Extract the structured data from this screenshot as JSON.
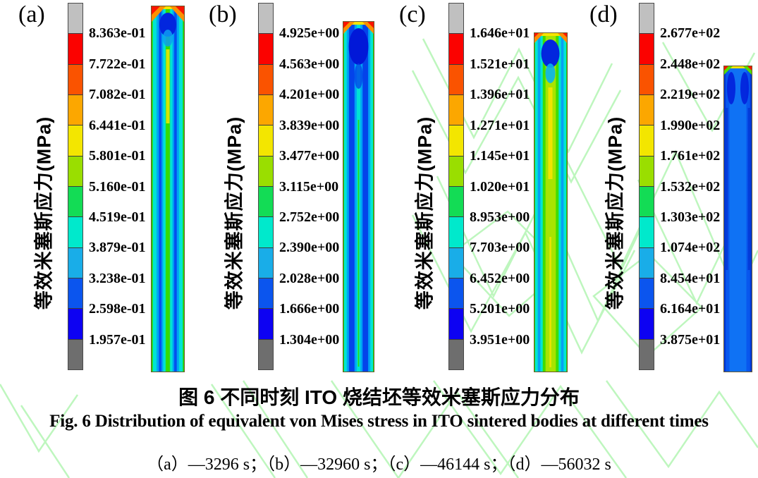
{
  "figure": {
    "caption_cn": "图 6 不同时刻 ITO 烧结坯等效米塞斯应力分布",
    "caption_en": "Fig. 6 Distribution of equivalent von Mises stress in ITO sintered bodies at different times",
    "caption_sub": "（a）—3296 s；（b）—32960 s；（c）—46144 s；（d）—56032 s",
    "colorbar_colors": [
      "#c0c0c0",
      "#fb0200",
      "#fa5300",
      "#fca700",
      "#f3e600",
      "#9ade00",
      "#13dc55",
      "#00e9cc",
      "#19ade8",
      "#0b55ee",
      "#0d02f2",
      "#6e6e6e"
    ],
    "watermark_color": "#aef4ae",
    "panels": [
      {
        "id": "a",
        "label": "(a)",
        "time": "3296 s",
        "axis_label": "等效米塞斯应力(MPa)",
        "tick_labels": [
          "8.363e-01",
          "7.722e-01",
          "7.082e-01",
          "6.441e-01",
          "5.801e-01",
          "5.160e-01",
          "4.519e-01",
          "3.879e-01",
          "3.238e-01",
          "2.598e-01",
          "1.957e-01"
        ]
      },
      {
        "id": "b",
        "label": "(b)",
        "time": "32960 s",
        "axis_label": "等效米塞斯应力(MPa)",
        "tick_labels": [
          "4.925e+00",
          "4.563e+00",
          "4.201e+00",
          "3.839e+00",
          "3.477e+00",
          "3.115e+00",
          "2.752e+00",
          "2.390e+00",
          "2.028e+00",
          "1.666e+00",
          "1.304e+00"
        ]
      },
      {
        "id": "c",
        "label": "(c)",
        "time": "46144 s",
        "axis_label": "等效米塞斯应力(MPa)",
        "tick_labels": [
          "1.646e+01",
          "1.521e+01",
          "1.396e+01",
          "1.271e+01",
          "1.145e+01",
          "1.020e+01",
          "8.953e+00",
          "7.703e+00",
          "6.452e+00",
          "5.201e+00",
          "3.951e+00"
        ]
      },
      {
        "id": "d",
        "label": "(d)",
        "time": "56032 s",
        "axis_label": "等效米塞斯应力(MPa)",
        "tick_labels": [
          "2.677e+02",
          "2.448e+02",
          "2.219e+02",
          "1.990e+02",
          "1.761e+02",
          "1.532e+02",
          "1.303e+02",
          "1.074e+02",
          "8.454e+01",
          "6.164e+01",
          "3.875e+01"
        ]
      }
    ]
  },
  "chart_data": [
    {
      "type": "heatmap",
      "panel": "a",
      "title": "等效米塞斯应力(MPa)",
      "time_s": 3296,
      "units": "MPa",
      "colorbar_ticks": [
        0.8363,
        0.7722,
        0.7082,
        0.6441,
        0.5801,
        0.516,
        0.4519,
        0.3879,
        0.3238,
        0.2598,
        0.1957
      ],
      "min": 0.1957,
      "max": 0.8363,
      "legend_position": "left of contour strip",
      "grid": false
    },
    {
      "type": "heatmap",
      "panel": "b",
      "title": "等效米塞斯应力(MPa)",
      "time_s": 32960,
      "units": "MPa",
      "colorbar_ticks": [
        4.925,
        4.563,
        4.201,
        3.839,
        3.477,
        3.115,
        2.752,
        2.39,
        2.028,
        1.666,
        1.304
      ],
      "min": 1.304,
      "max": 4.925,
      "legend_position": "left of contour strip",
      "grid": false
    },
    {
      "type": "heatmap",
      "panel": "c",
      "title": "等效米塞斯应力(MPa)",
      "time_s": 46144,
      "units": "MPa",
      "colorbar_ticks": [
        16.46,
        15.21,
        13.96,
        12.71,
        11.45,
        10.2,
        8.953,
        7.703,
        6.452,
        5.201,
        3.951
      ],
      "min": 3.951,
      "max": 16.46,
      "legend_position": "left of contour strip",
      "grid": false
    },
    {
      "type": "heatmap",
      "panel": "d",
      "title": "等效米塞斯应力(MPa)",
      "time_s": 56032,
      "units": "MPa",
      "colorbar_ticks": [
        267.7,
        244.8,
        221.9,
        199.0,
        176.1,
        153.2,
        130.3,
        107.4,
        84.54,
        61.64,
        38.75
      ],
      "min": 38.75,
      "max": 267.7,
      "legend_position": "left of contour strip",
      "grid": false
    }
  ]
}
